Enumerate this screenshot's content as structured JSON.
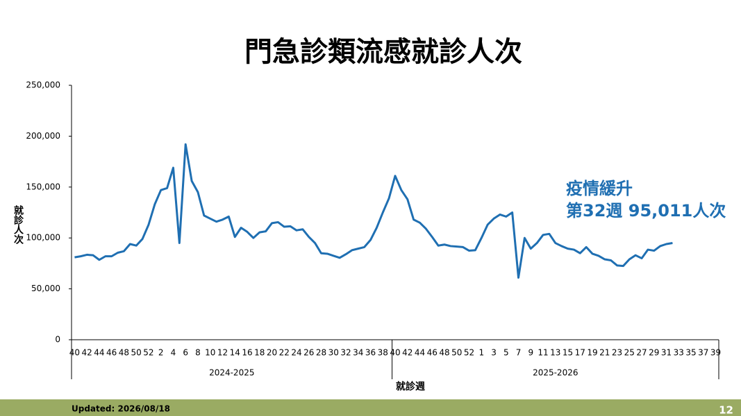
{
  "chart_data": {
    "type": "line",
    "title": "門急診類流感就診人次",
    "y_label": "就診人次",
    "x_label": "就診週",
    "groups": [
      {
        "name": "2024-2025",
        "categories": [
          "40",
          null,
          "42",
          null,
          "44",
          null,
          "46",
          null,
          "48",
          null,
          "50",
          null,
          "52",
          null,
          "2",
          null,
          "4",
          null,
          "6",
          null,
          "8",
          null,
          "10",
          null,
          "12",
          null,
          "14",
          null,
          "16",
          null,
          "18",
          null,
          "20",
          null,
          "22",
          null,
          "24",
          null,
          "26",
          null,
          "28",
          null,
          "30",
          null,
          "32",
          null,
          "34",
          null,
          "36",
          null,
          "38",
          null
        ]
      },
      {
        "name": "2025-2026",
        "categories": [
          "40",
          null,
          "42",
          null,
          "44",
          null,
          "46",
          null,
          "48",
          null,
          "50",
          null,
          "52",
          null,
          "1",
          null,
          "3",
          null,
          "5",
          null,
          "7",
          null,
          "9",
          null,
          "11",
          null,
          "13",
          null,
          "15",
          null,
          "17",
          null,
          "19",
          null,
          "21",
          null,
          "23",
          null,
          "25",
          null,
          "27",
          null,
          "29",
          null,
          "31",
          null,
          "33",
          null,
          "35",
          null,
          "37",
          null,
          "39"
        ]
      }
    ],
    "series": [
      {
        "name": "門急診類流感就診人次",
        "color": "#1f6fb2",
        "values": [
          81000,
          82000,
          83500,
          83000,
          78500,
          82000,
          82000,
          85500,
          87000,
          94000,
          92500,
          99000,
          113000,
          133000,
          147000,
          149000,
          169000,
          95000,
          192000,
          156000,
          145000,
          122000,
          119000,
          116000,
          118000,
          121000,
          101000,
          110000,
          106000,
          100000,
          105500,
          106500,
          114500,
          115500,
          111000,
          111500,
          107500,
          108500,
          101000,
          95000,
          85000,
          84500,
          82500,
          80500,
          84000,
          88000,
          89500,
          91000,
          98000,
          110000,
          125000,
          139000,
          161000,
          147000,
          138000,
          118000,
          115000,
          109000,
          101000,
          92500,
          93500,
          92000,
          91500,
          91000,
          87500,
          88000,
          100000,
          113000,
          119000,
          123000,
          121000,
          125000,
          61000,
          100000,
          89500,
          95000,
          103000,
          104000,
          95000,
          92000,
          89500,
          88500,
          85000,
          91000,
          84500,
          82500,
          79000,
          78000,
          73000,
          72500,
          79000,
          83000,
          80000,
          88500,
          87500,
          92000,
          94000,
          95011,
          null,
          null,
          null,
          null,
          null,
          null,
          null
        ]
      }
    ],
    "ylim": [
      0,
      250000
    ],
    "yticks": [
      {
        "value": 0,
        "label": "0"
      },
      {
        "value": 50000,
        "label": "50,000"
      },
      {
        "value": 100000,
        "label": "100,000"
      },
      {
        "value": 150000,
        "label": "150,000"
      },
      {
        "value": 200000,
        "label": "200,000"
      },
      {
        "value": 250000,
        "label": "250,000"
      }
    ],
    "annotation": [
      "疫情緩升",
      "第32週 95,011人次"
    ]
  },
  "footer": {
    "updated": "Updated: 2026/08/18",
    "page": "12"
  }
}
